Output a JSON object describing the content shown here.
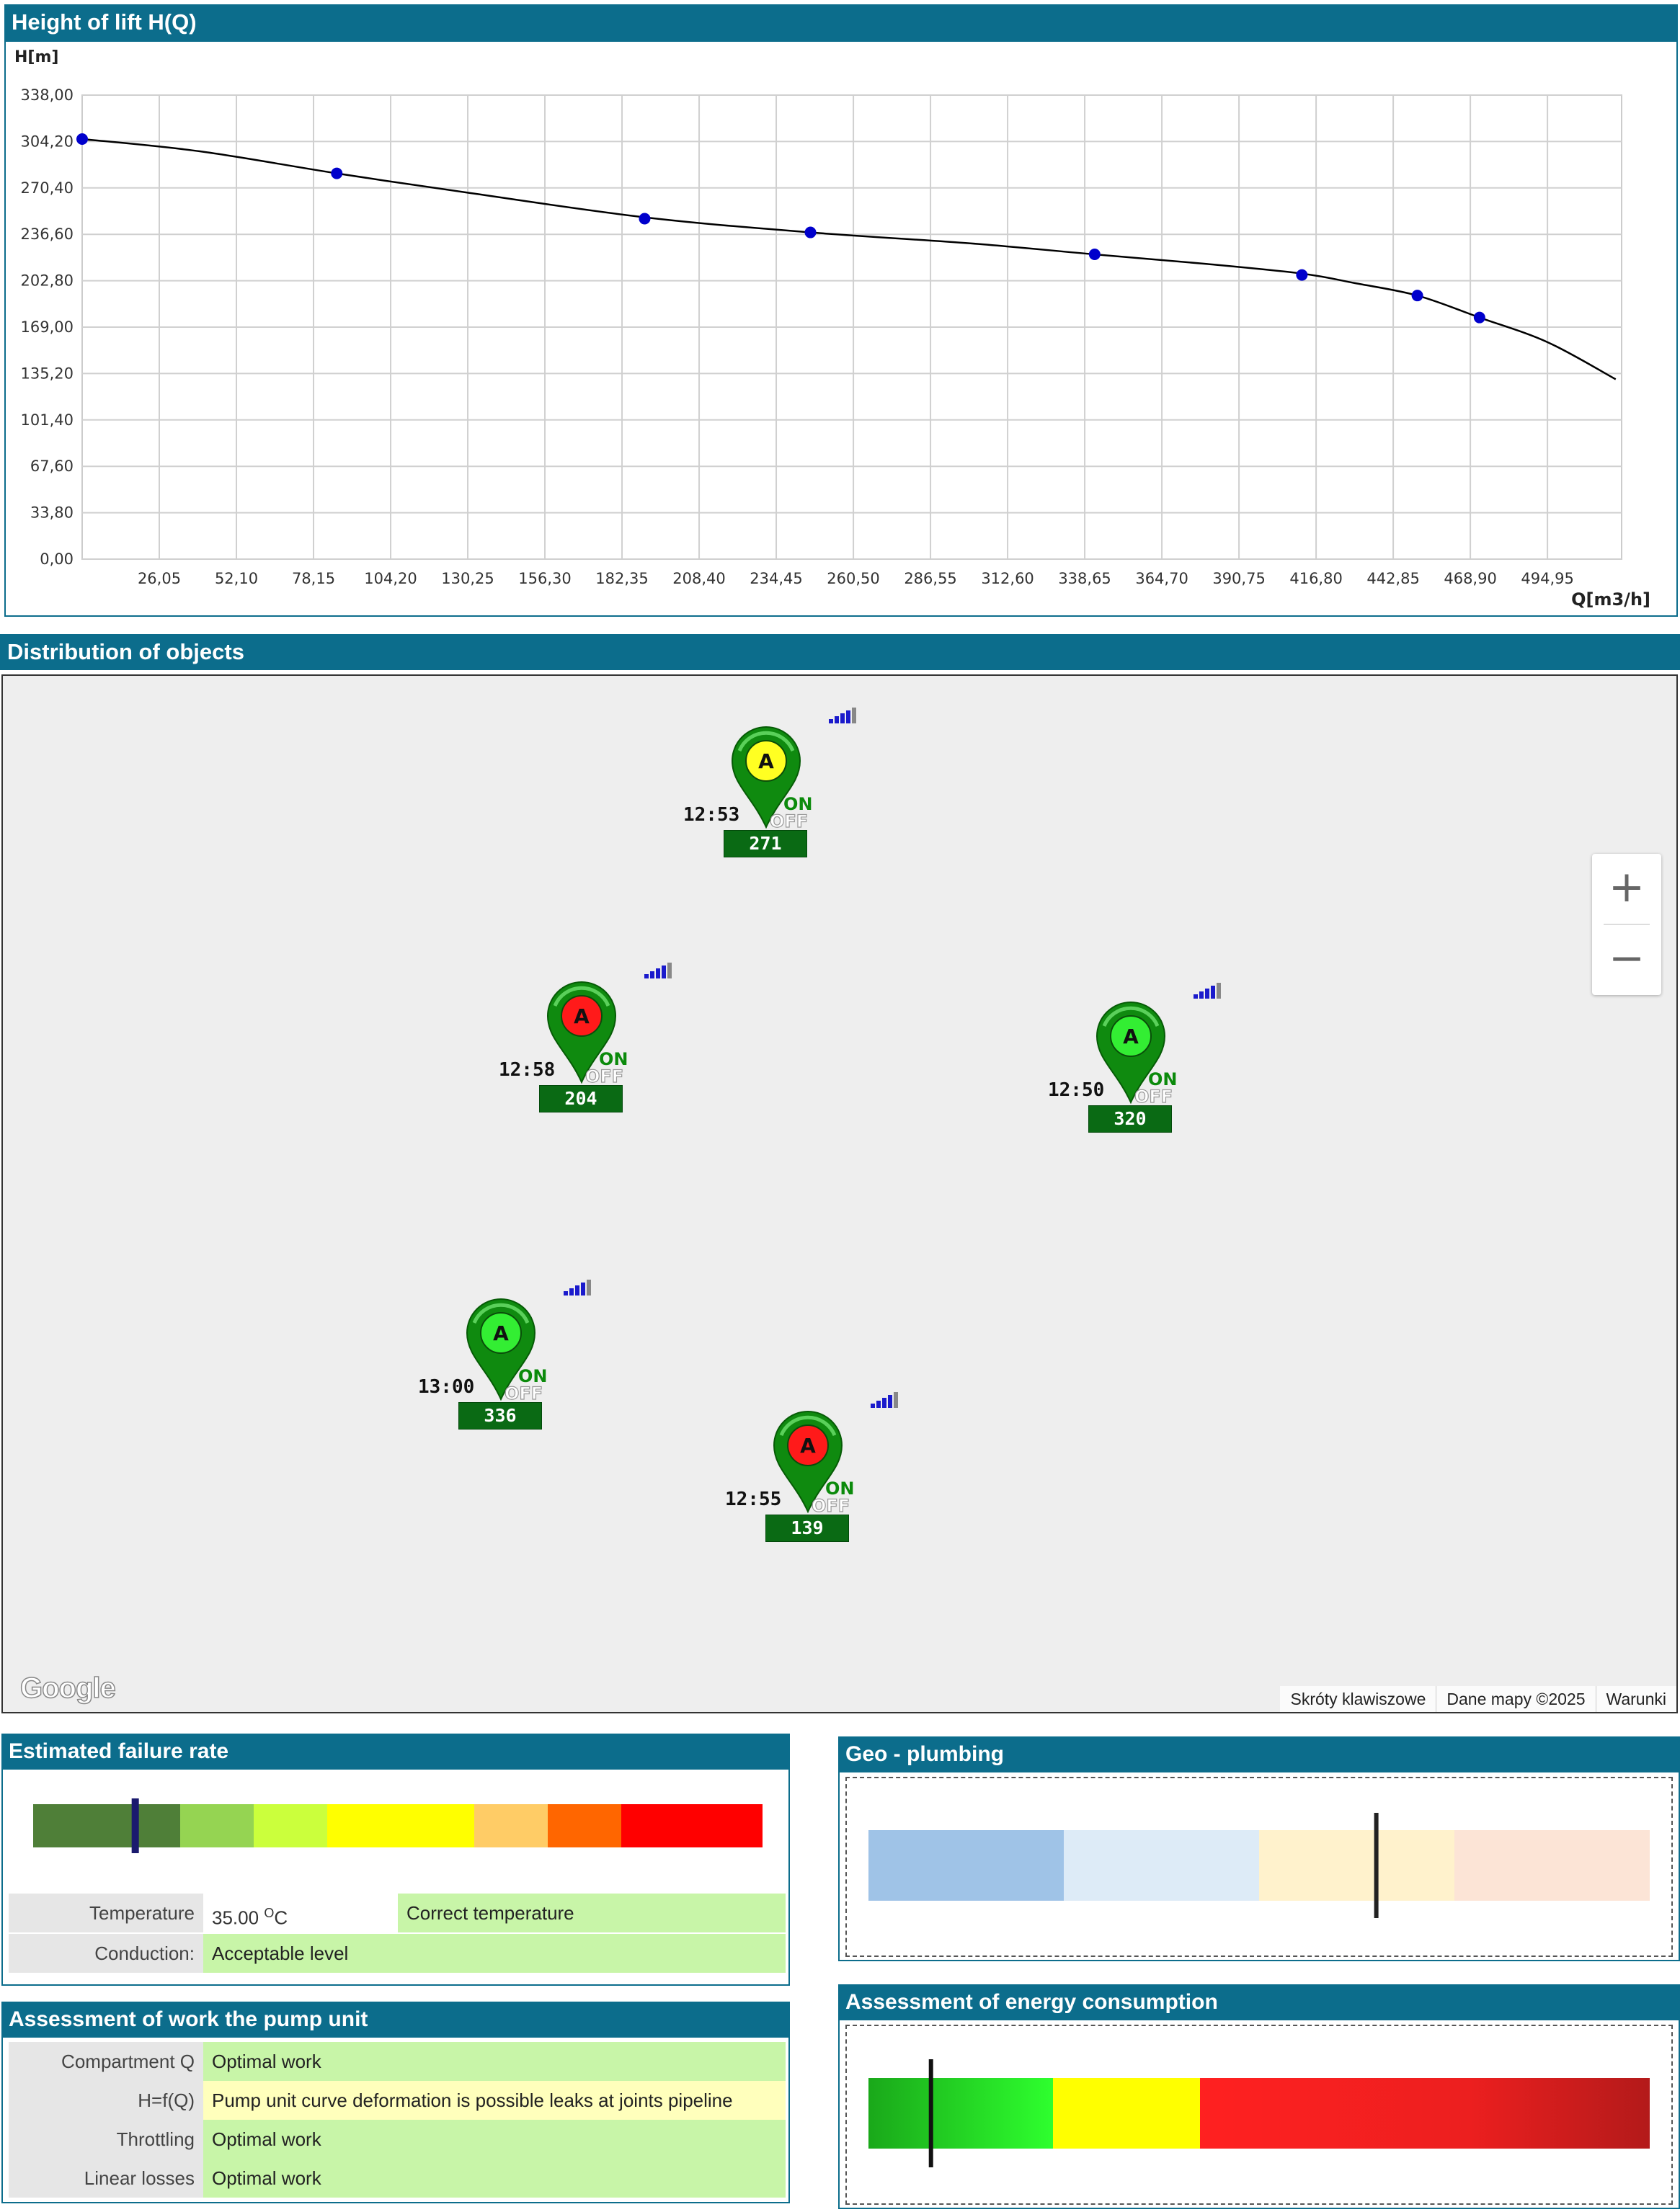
{
  "chart_panel": {
    "title": "Height of lift H(Q)"
  },
  "chart_data": {
    "type": "line",
    "title": "",
    "xlabel": "Q[m3/h]",
    "ylabel": "H[m]",
    "xlim": [
      0,
      520
    ],
    "ylim": [
      0,
      338
    ],
    "x_ticks": [
      "26,05",
      "52,10",
      "78,15",
      "104,20",
      "130,25",
      "156,30",
      "182,35",
      "208,40",
      "234,45",
      "260,50",
      "286,55",
      "312,60",
      "338,65",
      "364,70",
      "390,75",
      "416,80",
      "442,85",
      "468,90",
      "494,95"
    ],
    "y_ticks": [
      "0,00",
      "33,80",
      "67,60",
      "101,40",
      "135,20",
      "169,00",
      "202,80",
      "236,60",
      "270,40",
      "304,20",
      "338,00"
    ],
    "grid": true,
    "curve": {
      "x": [
        0,
        40,
        86,
        130,
        190,
        246,
        300,
        342,
        380,
        412,
        430,
        451,
        472,
        495,
        518
      ],
      "y": [
        306,
        297,
        281,
        267,
        249,
        238,
        230,
        222,
        215,
        208,
        201,
        192,
        176,
        158,
        131
      ]
    },
    "points": {
      "x": [
        0,
        86,
        190,
        246,
        342,
        412,
        451,
        472
      ],
      "y": [
        306,
        281,
        248,
        238,
        222,
        207,
        192,
        176
      ]
    },
    "line_color": "#000000",
    "point_color": "#0000cc"
  },
  "map_panel": {
    "title": "Distribution of objects",
    "footer": [
      "Skróty klawiszowe",
      "Dane mapy ©2025",
      "Warunki"
    ],
    "logo": "Google",
    "zoom_in": "+",
    "zoom_out": "−"
  },
  "markers": [
    {
      "time": "12:53",
      "id": "271",
      "status": "yellow",
      "letter": "A",
      "on": "ON",
      "off": "OFF"
    },
    {
      "time": "12:58",
      "id": "204",
      "status": "red",
      "letter": "A",
      "on": "ON",
      "off": "OFF"
    },
    {
      "time": "12:50",
      "id": "320",
      "status": "green",
      "letter": "A",
      "on": "ON",
      "off": "OFF"
    },
    {
      "time": "13:00",
      "id": "336",
      "status": "green",
      "letter": "A",
      "on": "ON",
      "off": "OFF"
    },
    {
      "time": "12:55",
      "id": "139",
      "status": "red",
      "letter": "A",
      "on": "ON",
      "off": "OFF"
    }
  ],
  "failure": {
    "title": "Estimated failure rate",
    "scale_colors": [
      "#4f7f38",
      "#95d452",
      "#cbff3c",
      "#ffff00",
      "#ffcc66",
      "#ff6600",
      "#ff0000"
    ],
    "indicator_level": 0.14,
    "temperature_label": "Temperature",
    "temperature_value": "35.00",
    "temperature_unit_sup": "O",
    "temperature_unit": "C",
    "temperature_status": "Correct temperature",
    "conduction_label": "Conduction:",
    "conduction_value": "Acceptable level"
  },
  "geo": {
    "title": "Geo - plumbing",
    "scale_colors": [
      "#9fc3e7",
      "#ddebf7",
      "#fff2cc",
      "#fce4d6"
    ],
    "indicator_level": 0.65
  },
  "pump": {
    "title": "Assessment of work the pump unit",
    "rows": [
      {
        "label": "Compartment Q",
        "value": "Optimal work",
        "status": "green"
      },
      {
        "label": "H=f(Q)",
        "value": "Pump unit curve deformation is possible leaks at joints pipeline",
        "status": "yellow"
      },
      {
        "label": "Throttling",
        "value": "Optimal work",
        "status": "green"
      },
      {
        "label": "Linear losses",
        "value": "Optimal work",
        "status": "green"
      }
    ]
  },
  "energy": {
    "title": "Assessment of energy consumption",
    "indicator_level": 0.08
  }
}
